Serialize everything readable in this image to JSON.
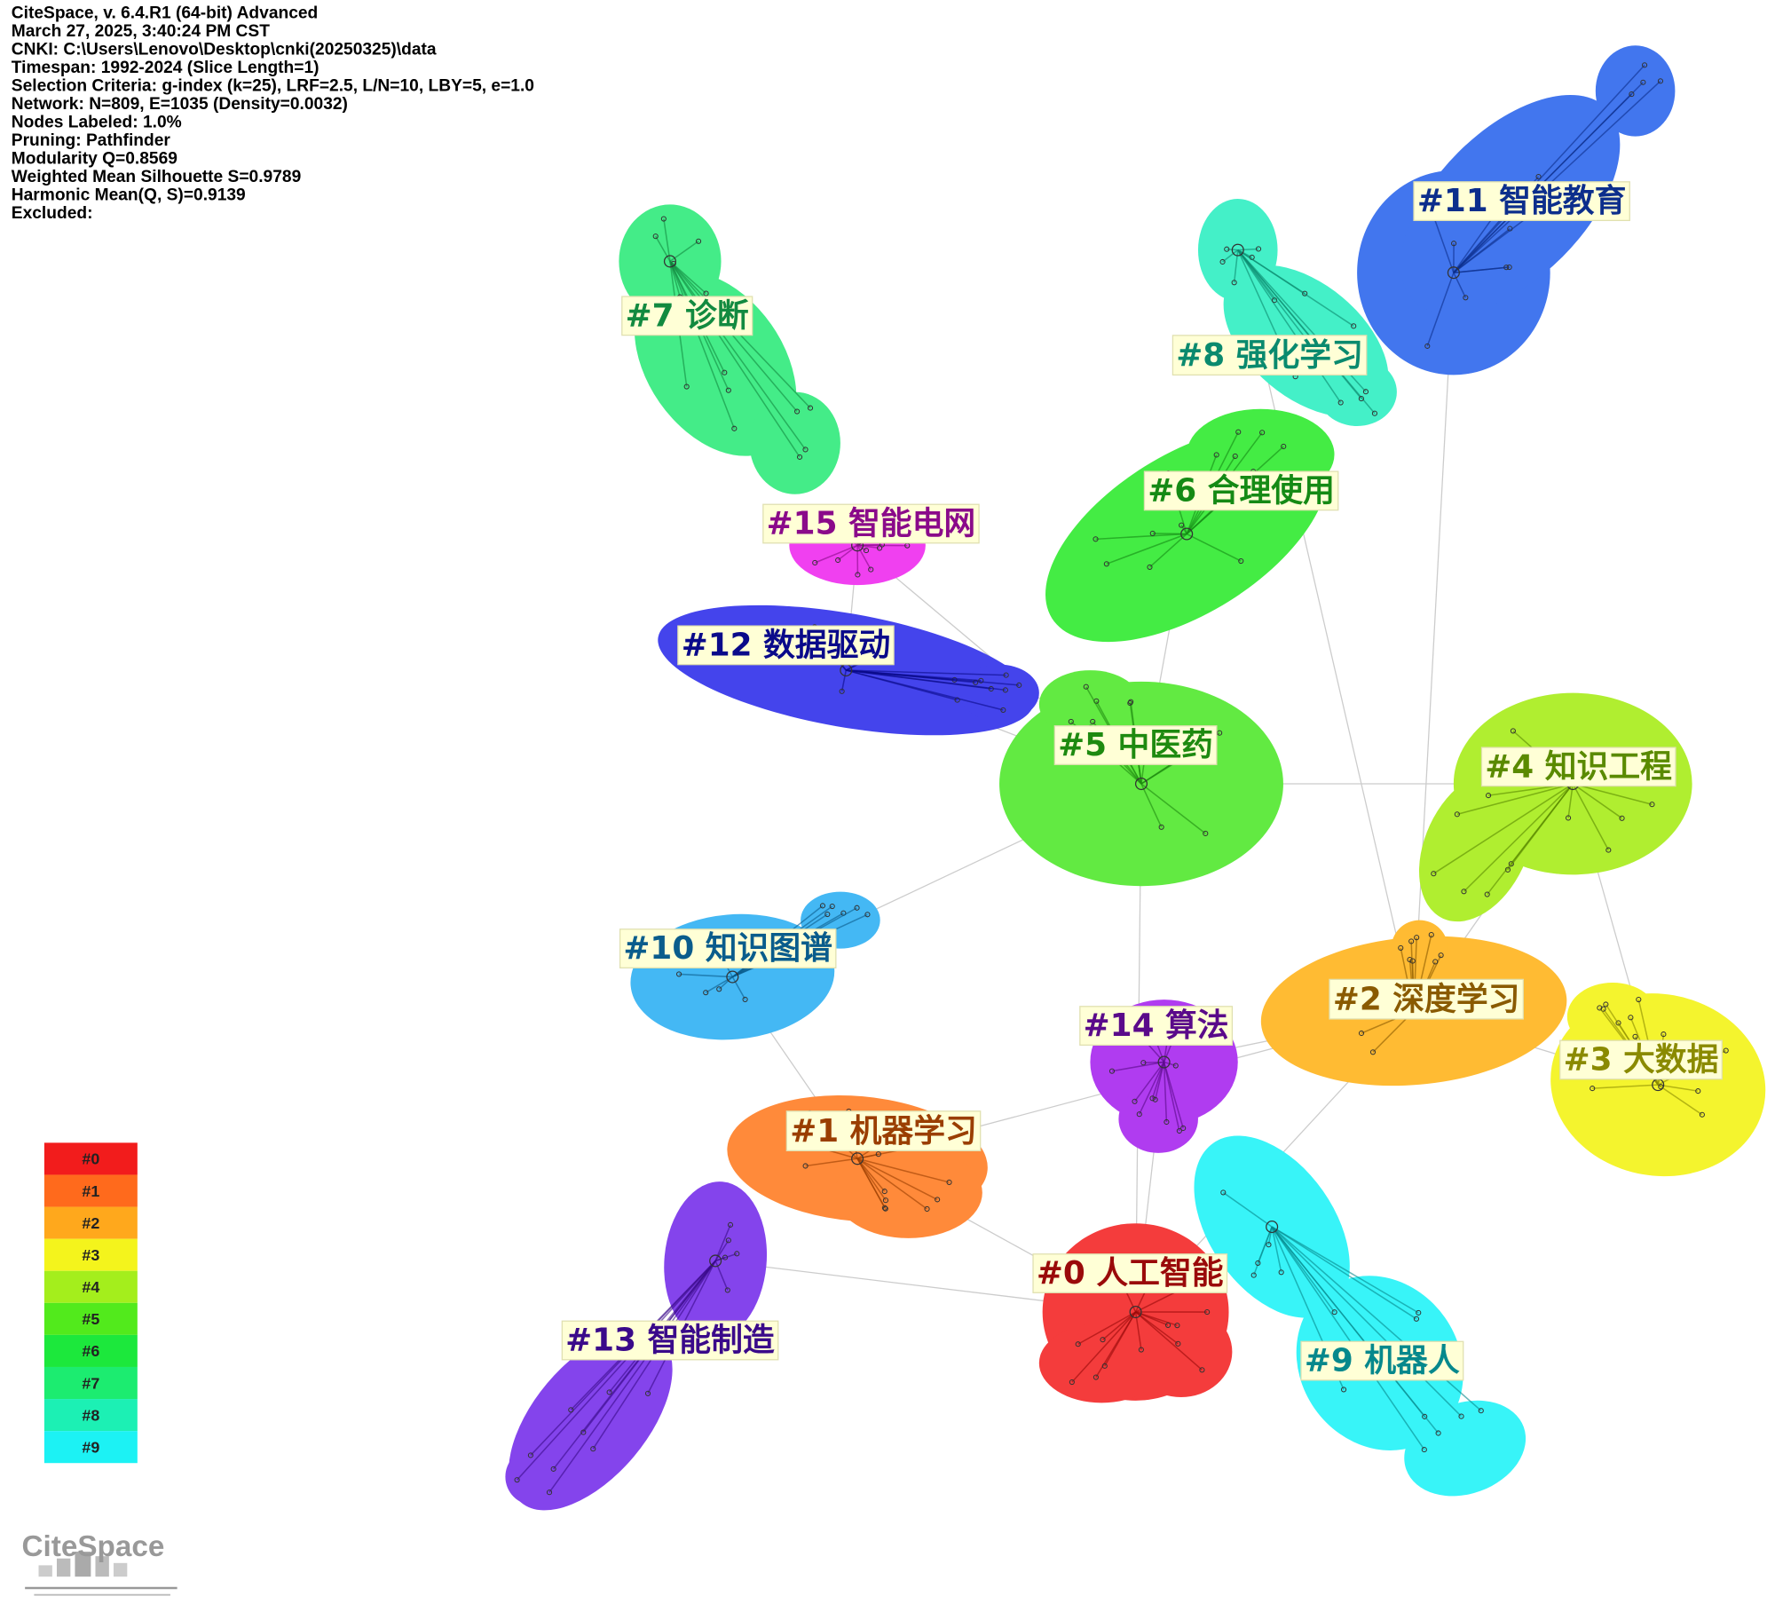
{
  "header": {
    "lines": [
      "CiteSpace, v. 6.4.R1 (64-bit) Advanced",
      "March 27, 2025, 3:40:24 PM CST",
      "CNKI: C:\\Users\\Lenovo\\Desktop\\cnki(20250325)\\data",
      "Timespan: 1992-2024 (Slice Length=1)",
      "Selection Criteria: g-index (k=25), LRF=2.5, L/N=10, LBY=5, e=1.0",
      "Network: N=809, E=1035 (Density=0.0032)",
      "Nodes Labeled: 1.0%",
      "Pruning: Pathfinder",
      "Modularity Q=0.8569",
      "Weighted Mean Silhouette S=0.9789",
      "Harmonic Mean(Q, S)=0.9139",
      "Excluded:"
    ]
  },
  "clusters": [
    {
      "label": "#0 人工智能"
    },
    {
      "label": "#1 机器学习"
    },
    {
      "label": "#2 深度学习"
    },
    {
      "label": "#3 大数据"
    },
    {
      "label": "#4 知识工程"
    },
    {
      "label": "#5 中医药"
    },
    {
      "label": "#6 合理使用"
    },
    {
      "label": "#7 诊断"
    },
    {
      "label": "#8 强化学习"
    },
    {
      "label": "#9 机器人"
    },
    {
      "label": "#10 知识图谱"
    },
    {
      "label": "#11 智能教育"
    },
    {
      "label": "#12 数据驱动"
    },
    {
      "label": "#13 智能制造"
    },
    {
      "label": "#14 算法"
    },
    {
      "label": "#15 智能电网"
    }
  ],
  "legend": {
    "items": [
      "#0",
      "#1",
      "#2",
      "#3",
      "#4",
      "#5",
      "#6",
      "#7",
      "#8",
      "#9"
    ]
  },
  "logo": "CiteSpace"
}
